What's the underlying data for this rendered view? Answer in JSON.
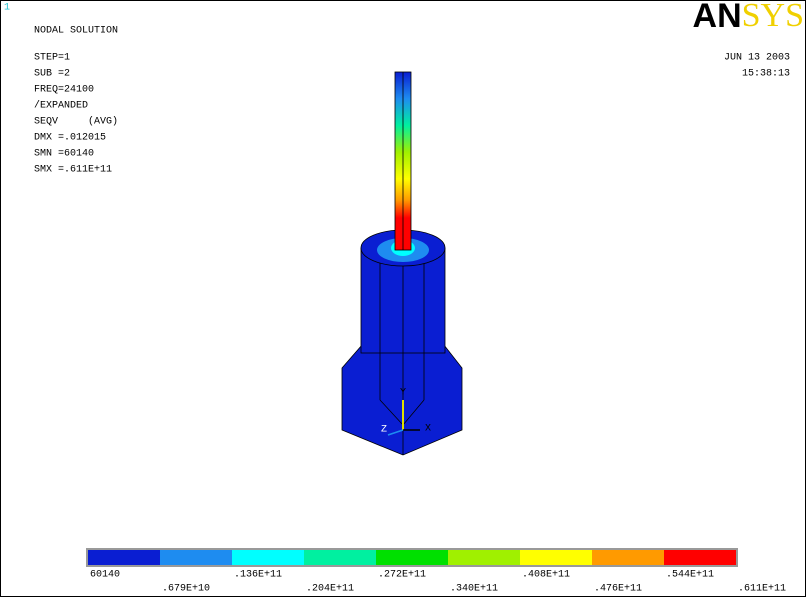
{
  "window_number": "1",
  "logo": {
    "left": "AN",
    "right": "SYS"
  },
  "info_lines": [
    "NODAL SOLUTION",
    "",
    "STEP=1",
    "SUB =2",
    "FREQ=24100",
    "/EXPANDED",
    "SEQV     (AVG)",
    "DMX =.012015",
    "SMN =60140",
    "SMX =.611E+11"
  ],
  "date": "JUN 13 2003",
  "time": "15:38:13",
  "triad": {
    "y": "Y",
    "z": "Z",
    "x": "X"
  },
  "legend": {
    "colors": [
      "#0a1ed2",
      "#1e8cf0",
      "#00ffff",
      "#00f0a0",
      "#00e000",
      "#a0f000",
      "#ffff00",
      "#ff9a00",
      "#ff0000"
    ],
    "labels": [
      "60140",
      ".679E+10",
      ".136E+11",
      ".204E+11",
      ".272E+11",
      ".340E+11",
      ".408E+11",
      ".476E+11",
      ".544E+11",
      ".611E+11"
    ]
  }
}
